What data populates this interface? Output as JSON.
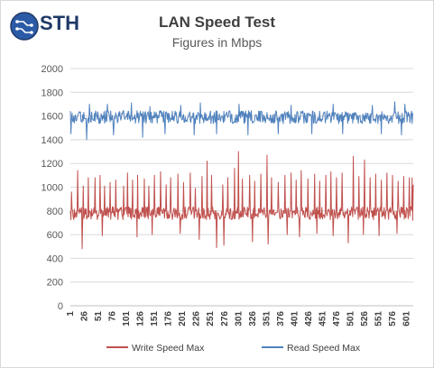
{
  "brand": {
    "name": "STH"
  },
  "chart_data": {
    "type": "line",
    "title": "LAN Speed Test",
    "subtitle": "Figures in Mbps",
    "xlabel": "",
    "ylabel": "",
    "ylim": [
      0,
      2000
    ],
    "yticks": [
      0,
      200,
      400,
      600,
      800,
      1000,
      1200,
      1400,
      1600,
      1800,
      2000
    ],
    "xlim": [
      1,
      613
    ],
    "xticks": [
      1,
      26,
      51,
      76,
      101,
      126,
      151,
      176,
      201,
      226,
      251,
      276,
      301,
      326,
      351,
      376,
      401,
      426,
      451,
      476,
      501,
      526,
      551,
      576,
      601
    ],
    "grid": "horizontal",
    "legend_position": "bottom",
    "series": [
      {
        "name": "Write Speed Max",
        "color": "#c0504d",
        "baseline": 780,
        "band": 55,
        "spikes_up": [
          [
            3,
            960
          ],
          [
            14,
            1140
          ],
          [
            24,
            1010
          ],
          [
            33,
            1080
          ],
          [
            45,
            1080
          ],
          [
            54,
            1100
          ],
          [
            62,
            1010
          ],
          [
            72,
            1040
          ],
          [
            82,
            1060
          ],
          [
            96,
            1010
          ],
          [
            103,
            1120
          ],
          [
            112,
            1060
          ],
          [
            121,
            1100
          ],
          [
            133,
            1070
          ],
          [
            141,
            1010
          ],
          [
            151,
            1100
          ],
          [
            162,
            1130
          ],
          [
            172,
            1020
          ],
          [
            180,
            1080
          ],
          [
            193,
            1110
          ],
          [
            203,
            1040
          ],
          [
            215,
            1120
          ],
          [
            224,
            990
          ],
          [
            236,
            1090
          ],
          [
            245,
            1220
          ],
          [
            253,
            1100
          ],
          [
            262,
            1070
          ],
          [
            273,
            1020
          ],
          [
            282,
            1080
          ],
          [
            294,
            1160
          ],
          [
            301,
            1300
          ],
          [
            308,
            1070
          ],
          [
            321,
            1100
          ],
          [
            330,
            1050
          ],
          [
            341,
            1110
          ],
          [
            352,
            1270
          ],
          [
            360,
            1080
          ],
          [
            372,
            1040
          ],
          [
            384,
            1100
          ],
          [
            395,
            1120
          ],
          [
            404,
            1060
          ],
          [
            413,
            1140
          ],
          [
            425,
            1070
          ],
          [
            437,
            1110
          ],
          [
            446,
            1050
          ],
          [
            457,
            1100
          ],
          [
            466,
            1130
          ],
          [
            476,
            1080
          ],
          [
            486,
            1120
          ],
          [
            497,
            1060
          ],
          [
            506,
            1260
          ],
          [
            516,
            1090
          ],
          [
            526,
            1230
          ],
          [
            536,
            1080
          ],
          [
            546,
            1110
          ],
          [
            556,
            1060
          ],
          [
            566,
            1120
          ],
          [
            576,
            1100
          ],
          [
            586,
            1050
          ],
          [
            596,
            1090
          ],
          [
            606,
            1080
          ],
          [
            611,
            1080
          ]
        ],
        "spikes_down": [
          [
            22,
            480
          ],
          [
            58,
            590
          ],
          [
            120,
            580
          ],
          [
            147,
            600
          ],
          [
            197,
            610
          ],
          [
            231,
            560
          ],
          [
            262,
            490
          ],
          [
            275,
            510
          ],
          [
            326,
            540
          ],
          [
            354,
            520
          ],
          [
            388,
            600
          ],
          [
            410,
            580
          ],
          [
            441,
            610
          ],
          [
            470,
            590
          ],
          [
            497,
            530
          ],
          [
            524,
            600
          ],
          [
            552,
            590
          ],
          [
            584,
            610
          ],
          [
            612,
            720
          ]
        ],
        "end": 1020
      },
      {
        "name": "Read Speed Max",
        "color": "#4f81bd",
        "baseline": 1590,
        "band": 55,
        "spikes_up": [
          [
            35,
            1700
          ],
          [
            67,
            1700
          ],
          [
            110,
            1710
          ],
          [
            143,
            1680
          ],
          [
            198,
            1690
          ],
          [
            233,
            1710
          ],
          [
            302,
            1700
          ],
          [
            395,
            1690
          ],
          [
            470,
            1700
          ],
          [
            540,
            1690
          ],
          [
            580,
            1720
          ],
          [
            598,
            1700
          ]
        ],
        "spikes_down": [
          [
            2,
            1450
          ],
          [
            30,
            1400
          ],
          [
            78,
            1440
          ],
          [
            130,
            1420
          ],
          [
            170,
            1450
          ],
          [
            222,
            1440
          ],
          [
            262,
            1450
          ],
          [
            318,
            1440
          ],
          [
            372,
            1450
          ],
          [
            432,
            1450
          ],
          [
            487,
            1450
          ],
          [
            556,
            1450
          ],
          [
            592,
            1440
          ]
        ],
        "end": 1620
      }
    ]
  }
}
